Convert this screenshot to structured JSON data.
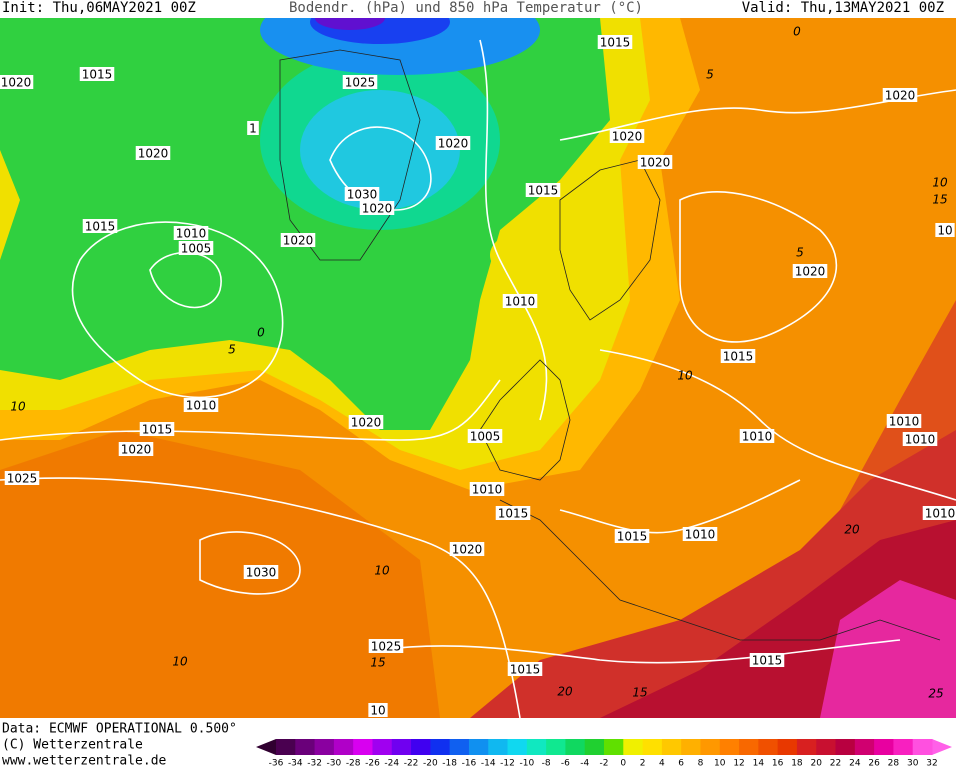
{
  "header": {
    "init": "Init: Thu,06MAY2021 00Z",
    "title": "Bodendr. (hPa) und 850 hPa Temperatur (°C)",
    "valid": "Valid: Thu,13MAY2021 00Z"
  },
  "map": {
    "isobar_labels": [
      "1015",
      "1020",
      "1015",
      "1025",
      "1",
      "1020",
      "1020",
      "1020",
      "1020",
      "1020",
      "1030",
      "1020",
      "1015",
      "1015",
      "1010",
      "1005",
      "1020",
      "1010",
      "10",
      "1020",
      "1015",
      "1010",
      "1015",
      "1020",
      "1020",
      "1005",
      "1010",
      "1010",
      "1010",
      "1025",
      "1010",
      "1015",
      "1015",
      "1010",
      "1010",
      "1020",
      "1030",
      "1025",
      "1015",
      "1015",
      "10"
    ],
    "temperature_labels": [
      "10",
      "5",
      "0",
      "10",
      "15",
      "10",
      "20",
      "25",
      "15",
      "20",
      "5",
      "10",
      "15",
      "10",
      "5",
      "0"
    ]
  },
  "legend": {
    "ticks": [
      -36,
      -34,
      -32,
      -30,
      -28,
      -26,
      -24,
      -22,
      -20,
      -18,
      -16,
      -14,
      -12,
      -10,
      -8,
      -6,
      -4,
      -2,
      0,
      2,
      4,
      6,
      8,
      10,
      12,
      14,
      16,
      18,
      20,
      22,
      24,
      26,
      28,
      30,
      32
    ],
    "colors": [
      "#4a0050",
      "#6a007a",
      "#8a00a0",
      "#b000c8",
      "#d800f0",
      "#a000f0",
      "#7000f0",
      "#4000f0",
      "#1030f0",
      "#1060f0",
      "#1090f0",
      "#10b8f0",
      "#10d8f0",
      "#10e8c0",
      "#10e890",
      "#10d860",
      "#20d030",
      "#60e000",
      "#f0f000",
      "#ffe000",
      "#ffc800",
      "#ffb000",
      "#ff9800",
      "#ff8000",
      "#f86800",
      "#f05000",
      "#e83800",
      "#d82020",
      "#c81030",
      "#b80040",
      "#d00070",
      "#e800a0",
      "#f820c0",
      "#ff50e0"
    ]
  },
  "footer": {
    "data": "Data: ECMWF OPERATIONAL 0.500°",
    "copyright": "(C) Wetterzentrale",
    "url": "www.wetterzentrale.de"
  }
}
